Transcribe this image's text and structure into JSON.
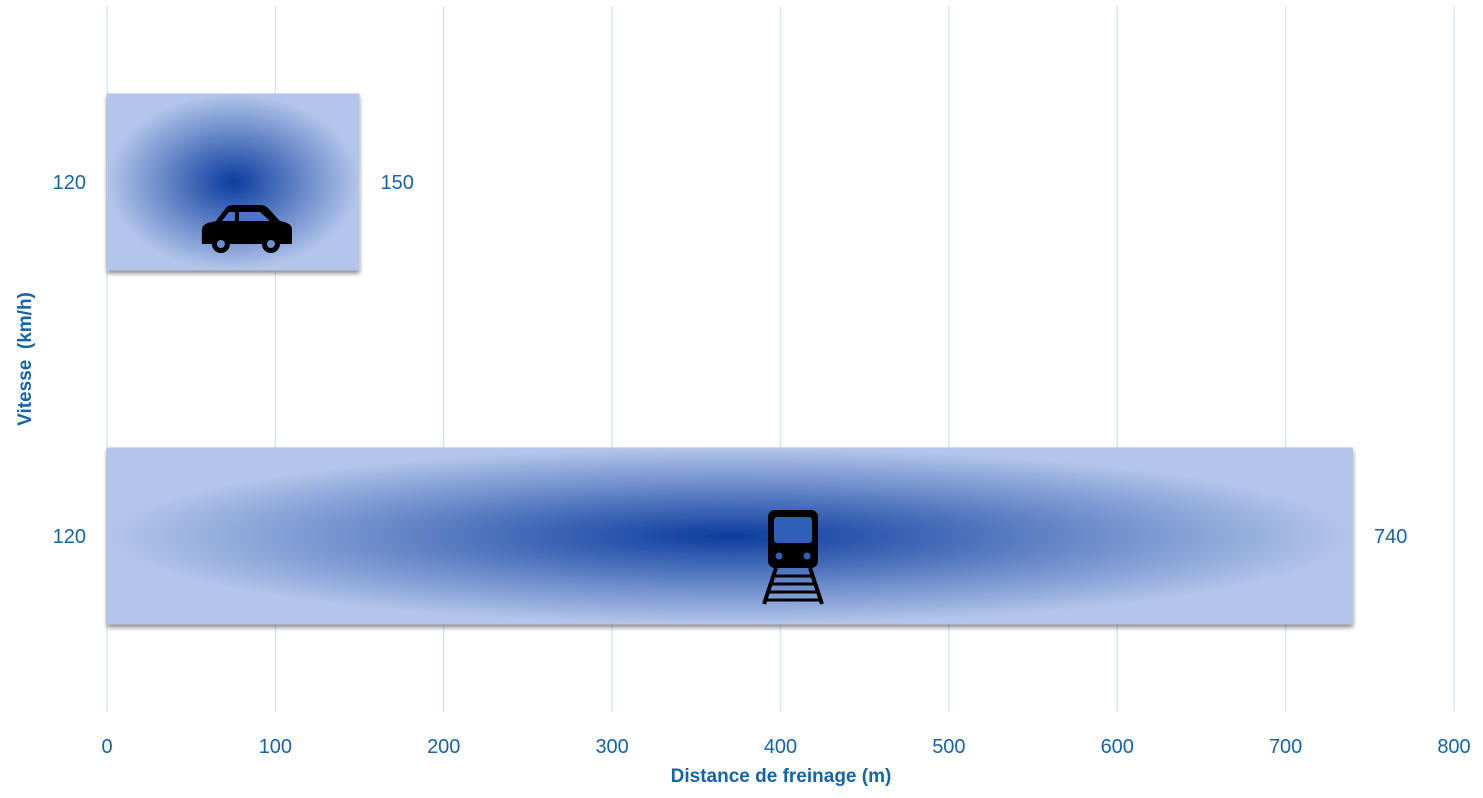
{
  "chart_data": {
    "type": "bar",
    "orientation": "horizontal",
    "xlabel": "Distance de freinage (m)",
    "ylabel": "Vitesse  (km/h)",
    "xlim": [
      0,
      800
    ],
    "x_ticks": [
      "0",
      "100",
      "200",
      "300",
      "400",
      "500",
      "600",
      "700",
      "800"
    ],
    "grid": "vertical",
    "bars": [
      {
        "category": "120",
        "value": 150,
        "value_label": "150",
        "icon": "car-icon"
      },
      {
        "category": "120",
        "value": 740,
        "value_label": "740",
        "icon": "train-icon"
      }
    ],
    "colors": {
      "bar_center": "#0b3d9f",
      "bar_edge": "#b3c5ea",
      "text": "#1663a6",
      "grid": "#d6e8f5",
      "icon": "#000000"
    }
  }
}
